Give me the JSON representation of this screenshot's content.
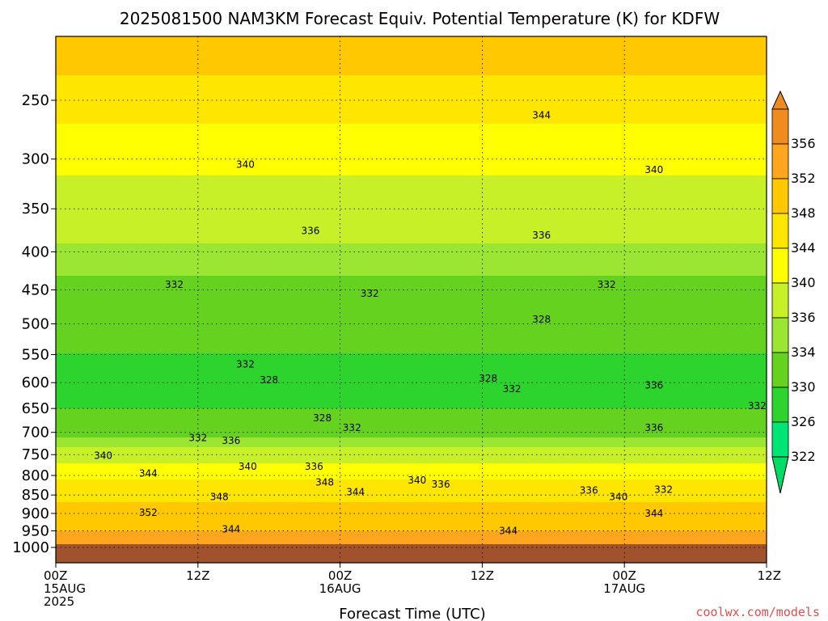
{
  "chart_data": {
    "type": "heatmap",
    "title": "2025081500 NAM3KM Forecast Equiv. Potential Temperature (K) for KDFW",
    "xlabel": "Forecast Time (UTC)",
    "ylabel": "",
    "credit": "coolwx.com/models",
    "y_scale": "log",
    "y_inverted": true,
    "ylim": [
      200,
      1050
    ],
    "y_ticks": [
      250,
      300,
      350,
      400,
      450,
      500,
      550,
      600,
      650,
      700,
      750,
      800,
      850,
      900,
      950,
      1000
    ],
    "y_tick_labels": [
      "250",
      "300",
      "350",
      "400",
      "450",
      "500",
      "550",
      "600",
      "650",
      "700",
      "750",
      "800",
      "850",
      "900",
      "950",
      "1000"
    ],
    "x_ticks": [
      {
        "hour": 0,
        "lines": [
          "00Z",
          "15AUG",
          "2025"
        ]
      },
      {
        "hour": 12,
        "lines": [
          "12Z"
        ]
      },
      {
        "hour": 24,
        "lines": [
          "00Z",
          "16AUG"
        ]
      },
      {
        "hour": 36,
        "lines": [
          "12Z"
        ]
      },
      {
        "hour": 48,
        "lines": [
          "00Z",
          "17AUG"
        ]
      },
      {
        "hour": 60,
        "lines": [
          "12Z"
        ]
      }
    ],
    "xlim": [
      0,
      60
    ],
    "grid": true,
    "colorbar": {
      "levels": [
        322,
        326,
        330,
        334,
        336,
        340,
        344,
        348,
        352,
        356
      ],
      "colors": [
        "#00e676",
        "#2ed42e",
        "#64d21e",
        "#9ae632",
        "#c8f028",
        "#ffff00",
        "#ffe600",
        "#ffc800",
        "#ffa51e",
        "#f08c1e"
      ],
      "low_color": "#00dd66",
      "high_color": "#ee8a22"
    },
    "ground_color": "#a0522d",
    "ground_below_hpa": 1000,
    "theta_e_profile": [
      {
        "p": 200,
        "theta_e": 352
      },
      {
        "p": 250,
        "theta_e": 346
      },
      {
        "p": 300,
        "theta_e": 341
      },
      {
        "p": 350,
        "theta_e": 338
      },
      {
        "p": 400,
        "theta_e": 335.5
      },
      {
        "p": 450,
        "theta_e": 333
      },
      {
        "p": 500,
        "theta_e": 331
      },
      {
        "p": 550,
        "theta_e": 330
      },
      {
        "p": 600,
        "theta_e": 329
      },
      {
        "p": 650,
        "theta_e": 330
      },
      {
        "p": 700,
        "theta_e": 333
      },
      {
        "p": 750,
        "theta_e": 338
      },
      {
        "p": 800,
        "theta_e": 343
      },
      {
        "p": 850,
        "theta_e": 347
      },
      {
        "p": 900,
        "theta_e": 350
      },
      {
        "p": 950,
        "theta_e": 352
      },
      {
        "p": 1000,
        "theta_e": 353
      }
    ],
    "contour_labels": [
      {
        "text": "344",
        "hour": 41,
        "p": 262
      },
      {
        "text": "340",
        "hour": 16,
        "p": 305
      },
      {
        "text": "340",
        "hour": 50.5,
        "p": 310
      },
      {
        "text": "336",
        "hour": 21.5,
        "p": 375
      },
      {
        "text": "336",
        "hour": 41,
        "p": 380
      },
      {
        "text": "332",
        "hour": 10,
        "p": 443
      },
      {
        "text": "332",
        "hour": 26.5,
        "p": 455
      },
      {
        "text": "332",
        "hour": 46.5,
        "p": 443
      },
      {
        "text": "328",
        "hour": 41,
        "p": 493
      },
      {
        "text": "332",
        "hour": 16,
        "p": 567
      },
      {
        "text": "328",
        "hour": 18,
        "p": 595
      },
      {
        "text": "328",
        "hour": 22.5,
        "p": 670
      },
      {
        "text": "332",
        "hour": 25,
        "p": 690
      },
      {
        "text": "328",
        "hour": 36.5,
        "p": 592
      },
      {
        "text": "332",
        "hour": 38.5,
        "p": 612
      },
      {
        "text": "336",
        "hour": 50.5,
        "p": 605
      },
      {
        "text": "336",
        "hour": 50.5,
        "p": 690
      },
      {
        "text": "332",
        "hour": 59.2,
        "p": 645
      },
      {
        "text": "332",
        "hour": 12,
        "p": 712
      },
      {
        "text": "336",
        "hour": 14.8,
        "p": 718
      },
      {
        "text": "340",
        "hour": 4,
        "p": 752
      },
      {
        "text": "340",
        "hour": 16.2,
        "p": 778
      },
      {
        "text": "336",
        "hour": 21.8,
        "p": 778
      },
      {
        "text": "344",
        "hour": 7.8,
        "p": 795
      },
      {
        "text": "348",
        "hour": 22.7,
        "p": 817
      },
      {
        "text": "344",
        "hour": 25.3,
        "p": 842
      },
      {
        "text": "340",
        "hour": 30.5,
        "p": 812
      },
      {
        "text": "336",
        "hour": 32.5,
        "p": 822
      },
      {
        "text": "336",
        "hour": 45,
        "p": 838
      },
      {
        "text": "340",
        "hour": 47.5,
        "p": 855
      },
      {
        "text": "332",
        "hour": 51.3,
        "p": 836
      },
      {
        "text": "348",
        "hour": 13.8,
        "p": 855
      },
      {
        "text": "352",
        "hour": 7.8,
        "p": 898
      },
      {
        "text": "344",
        "hour": 14.8,
        "p": 945
      },
      {
        "text": "344",
        "hour": 38.2,
        "p": 950
      },
      {
        "text": "344",
        "hour": 50.5,
        "p": 900
      }
    ]
  }
}
